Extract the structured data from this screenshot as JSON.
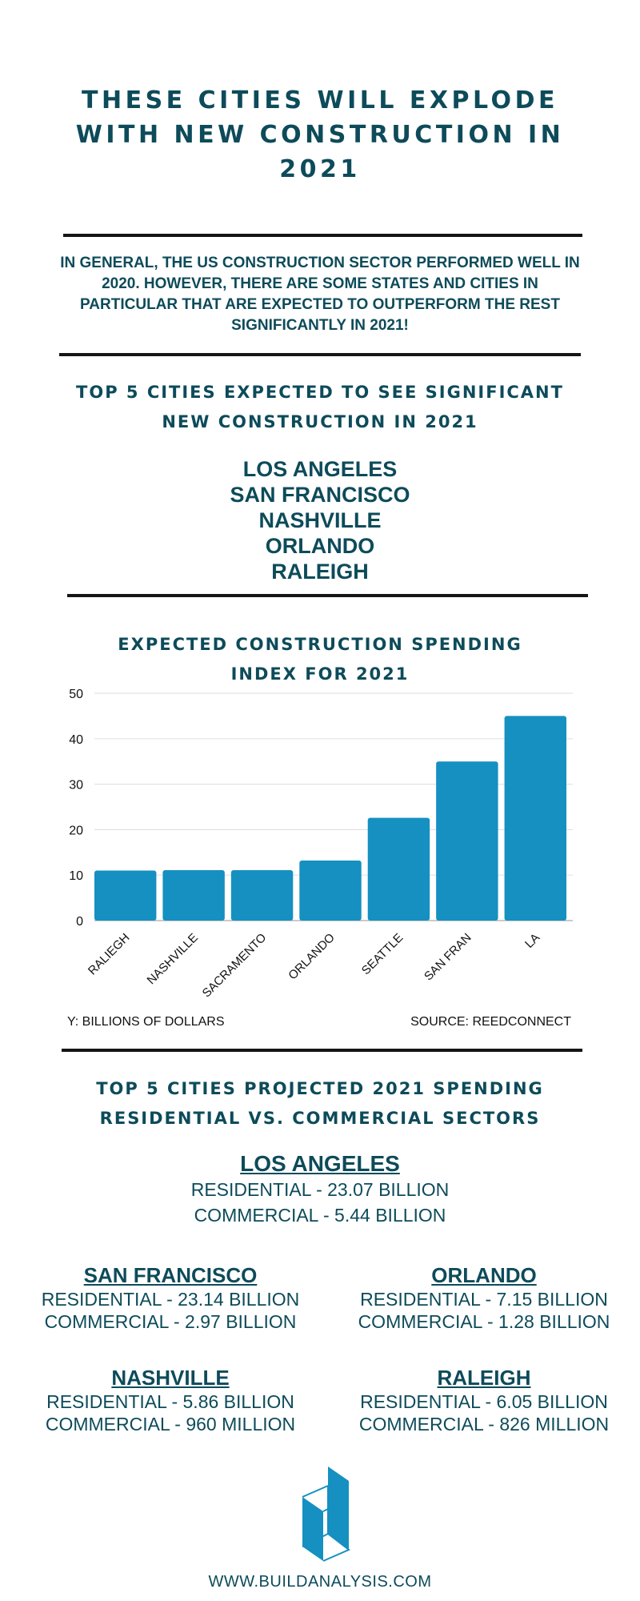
{
  "title": "These cities will explode with new construction in 2021",
  "intro": "In general, the US construction sector performed well in 2020. However, there are some states and cities in particular that are expected to outperform the rest significantly in 2021!",
  "top5": {
    "heading_1": "Top 5 cities expected to see significant",
    "heading_2": "new construction in 2021",
    "cities": [
      "LOS ANGELES",
      "SAN FRANCISCO",
      "NASHVILLE",
      "ORLANDO",
      "RALEIGH"
    ]
  },
  "chart_data": {
    "type": "bar",
    "title": "Expected construction spending index for 2021",
    "title_1": "Expected construction spending",
    "title_2": "index for 2021",
    "categories": [
      "RALIEGH",
      "NASHVILLE",
      "SACRAMENTO",
      "ORLANDO",
      "SEATTLE",
      "SAN FRAN",
      "LA"
    ],
    "values": [
      11,
      11.1,
      11.1,
      13.2,
      22.6,
      35,
      45
    ],
    "ylim": [
      0,
      50
    ],
    "yticks": [
      0,
      10,
      20,
      30,
      40,
      50
    ],
    "ylabel": "Y: BILLIONS OF DOLLARS",
    "source": "SOURCE: REEDCONNECT",
    "grid": true,
    "color": "#1590c1"
  },
  "spending": {
    "heading_1": "Top 5 cities projected 2021 spending",
    "heading_2": "residential vs. commercial sectors",
    "cities": [
      {
        "name": "LOS ANGELES",
        "residential": "RESIDENTIAL - 23.07 BILLION",
        "commercial": "COMMERCIAL - 5.44 BILLION"
      },
      {
        "name": "SAN FRANCISCO",
        "residential": "RESIDENTIAL - 23.14 BILLION",
        "commercial": "COMMERCIAL - 2.97 BILLION"
      },
      {
        "name": "ORLANDO",
        "residential": "RESIDENTIAL - 7.15 BILLION",
        "commercial": "COMMERCIAL - 1.28 BILLION"
      },
      {
        "name": "NASHVILLE",
        "residential": "RESIDENTIAL - 5.86 BILLION",
        "commercial": "COMMERCIAL - 960 MILLION"
      },
      {
        "name": "RALEIGH",
        "residential": "RESIDENTIAL - 6.05 BILLION",
        "commercial": "COMMERCIAL - 826 MILLION"
      }
    ]
  },
  "footer": {
    "url": "WWW.BUILDANALYSIS.COM",
    "logo_icon": "building-logo-icon"
  }
}
